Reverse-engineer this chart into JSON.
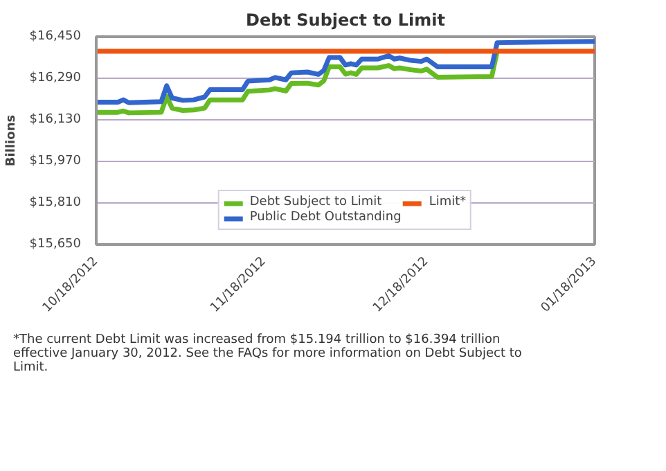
{
  "chart_data": {
    "type": "line",
    "title": "Debt Subject to Limit",
    "ylabel": "Billions",
    "series": [
      {
        "name": "Debt Subject to Limit",
        "color": "#66bb22",
        "x": [
          "2012-10-18",
          "2012-10-22",
          "2012-10-23",
          "2012-10-24",
          "2012-10-30",
          "2012-10-31",
          "2012-11-01",
          "2012-11-03",
          "2012-11-05",
          "2012-11-07",
          "2012-11-08",
          "2012-11-14",
          "2012-11-15",
          "2012-11-19",
          "2012-11-20",
          "2012-11-22",
          "2012-11-23",
          "2012-11-26",
          "2012-11-28",
          "2012-11-29",
          "2012-11-30",
          "2012-12-02",
          "2012-12-03",
          "2012-12-04",
          "2012-12-05",
          "2012-12-06",
          "2012-12-09",
          "2012-12-11",
          "2012-12-12",
          "2012-12-13",
          "2012-12-15",
          "2012-12-17",
          "2012-12-18",
          "2012-12-20",
          "2012-12-30",
          "2012-12-31"
        ],
        "values": [
          16159,
          16159,
          16164,
          16157,
          16159,
          16220,
          16175,
          16166,
          16168,
          16175,
          16207,
          16207,
          16240,
          16245,
          16250,
          16241,
          16270,
          16271,
          16264,
          16280,
          16334,
          16334,
          16306,
          16311,
          16305,
          16330,
          16330,
          16339,
          16327,
          16330,
          16323,
          16318,
          16325,
          16294,
          16297,
          16393
        ]
      },
      {
        "name": "Public Debt Outstanding",
        "color": "#3366cc",
        "x": [
          "2012-10-18",
          "2012-10-22",
          "2012-10-23",
          "2012-10-24",
          "2012-10-30",
          "2012-10-31",
          "2012-11-01",
          "2012-11-03",
          "2012-11-05",
          "2012-11-07",
          "2012-11-08",
          "2012-11-14",
          "2012-11-15",
          "2012-11-19",
          "2012-11-20",
          "2012-11-22",
          "2012-11-23",
          "2012-11-26",
          "2012-11-28",
          "2012-11-29",
          "2012-11-30",
          "2012-12-02",
          "2012-12-03",
          "2012-12-04",
          "2012-12-05",
          "2012-12-06",
          "2012-12-09",
          "2012-12-11",
          "2012-12-12",
          "2012-12-13",
          "2012-12-15",
          "2012-12-17",
          "2012-12-18",
          "2012-12-20",
          "2012-12-30",
          "2012-12-31",
          "2013-01-18"
        ],
        "values": [
          16198,
          16198,
          16207,
          16196,
          16200,
          16261,
          16214,
          16205,
          16207,
          16218,
          16246,
          16246,
          16279,
          16284,
          16293,
          16284,
          16311,
          16314,
          16305,
          16320,
          16370,
          16370,
          16341,
          16346,
          16341,
          16364,
          16364,
          16377,
          16364,
          16368,
          16359,
          16355,
          16364,
          16334,
          16334,
          16427,
          16432
        ]
      },
      {
        "name": "Limit*",
        "color": "#ee5511",
        "x": [
          "2012-10-18",
          "2013-01-18"
        ],
        "values": [
          16394,
          16394
        ]
      }
    ],
    "xlim": [
      "2012-10-18",
      "2013-01-18"
    ],
    "xticks": [
      {
        "value": "2012-10-18",
        "label": "10/18/2012"
      },
      {
        "value": "2012-11-18",
        "label": "11/18/2012"
      },
      {
        "value": "2012-12-18",
        "label": "12/18/2012"
      },
      {
        "value": "2013-01-18",
        "label": "01/18/2013"
      }
    ],
    "ylim": [
      15650,
      16450
    ],
    "yticks": [
      {
        "value": 15650,
        "label": "$15,650"
      },
      {
        "value": 15810,
        "label": "$15,810"
      },
      {
        "value": 15970,
        "label": "$15,970"
      },
      {
        "value": 16130,
        "label": "$16,130"
      },
      {
        "value": 16290,
        "label": "$16,290"
      },
      {
        "value": 16450,
        "label": "$16,450"
      }
    ],
    "grid": "y",
    "legend": "bottom",
    "marker": "none",
    "line_style": "solid",
    "annotations": [
      "*The current Debt Limit was increased from $15.194 trillion to $16.394 trillion effective January 30, 2012. See the FAQs for more information on Debt Subject to Limit."
    ]
  }
}
